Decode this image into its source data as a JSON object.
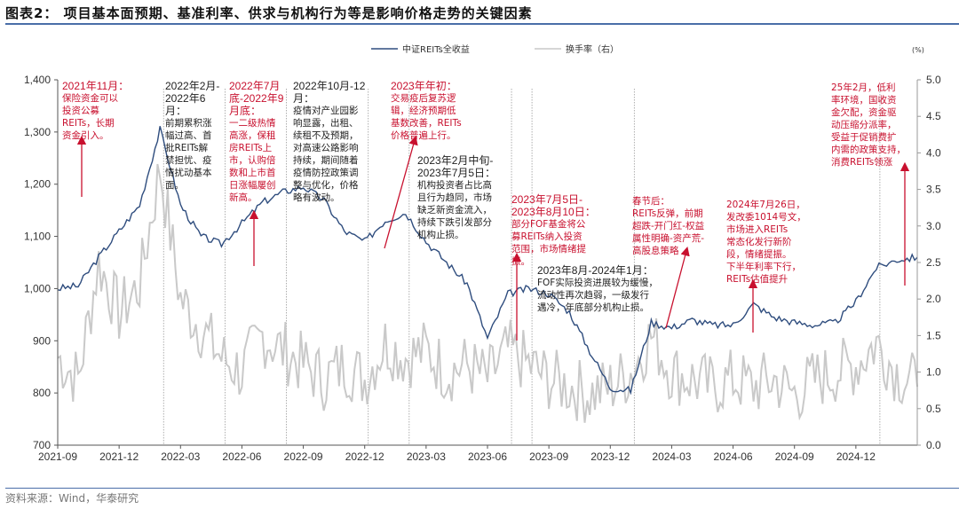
{
  "header": {
    "title": "图表2：  项目基本面预期、基准利率、供求与机构行为等是影响价格走势的关键因素"
  },
  "footer": {
    "source": "资料来源：Wind，华泰研究"
  },
  "colors": {
    "index_line": "#2f4d7e",
    "turnover_line": "#c9c9c9",
    "annotation_red": "#c8102e",
    "annotation_black": "#222222",
    "rule": "#4a6ea8"
  },
  "chart_data": {
    "type": "line",
    "title": "项目基本面预期、基准利率、供求与机构行为等是影响价格走势的关键因素",
    "xlabel": "",
    "ylabel_left": "",
    "ylabel_right": "(%)",
    "x_ticks": [
      "2021-09",
      "2021-12",
      "2022-03",
      "2022-06",
      "2022-09",
      "2022-12",
      "2023-03",
      "2023-06",
      "2023-09",
      "2023-12",
      "2024-03",
      "2024-06",
      "2024-09",
      "2024-12"
    ],
    "ylim_left": [
      700,
      1400
    ],
    "yticks_left": [
      "700",
      "800",
      "900",
      "1,000",
      "1,100",
      "1,200",
      "1,300",
      "1,400"
    ],
    "ylim_right": [
      0.0,
      5.0
    ],
    "yticks_right": [
      "0.0",
      "0.5",
      "1.0",
      "1.5",
      "2.0",
      "2.5",
      "3.0",
      "3.5",
      "4.0",
      "4.5",
      "5.0"
    ],
    "grid": false,
    "legend_position": "top",
    "legend": [
      "中证REITs全收益",
      "换手率（右）"
    ],
    "series": [
      {
        "name": "中证REITs全收益",
        "axis": "left",
        "x": [
          "2021-09",
          "2021-10",
          "2021-11",
          "2021-12",
          "2022-01",
          "2022-02",
          "2022-03",
          "2022-04",
          "2022-05",
          "2022-06",
          "2022-07",
          "2022-08",
          "2022-09",
          "2022-10",
          "2022-11",
          "2022-12",
          "2023-01",
          "2023-02",
          "2023-03",
          "2023-04",
          "2023-05",
          "2023-06",
          "2023-07",
          "2023-08",
          "2023-09",
          "2023-10",
          "2023-11",
          "2023-12",
          "2024-01",
          "2024-02",
          "2024-03",
          "2024-04",
          "2024-05",
          "2024-06",
          "2024-07",
          "2024-08",
          "2024-09",
          "2024-10",
          "2024-11",
          "2024-12",
          "2025-01",
          "2025-02",
          "2025-03"
        ],
        "values": [
          1000,
          1005,
          1060,
          1110,
          1160,
          1305,
          1160,
          1100,
          1085,
          1125,
          1165,
          1185,
          1195,
          1170,
          1110,
          1090,
          1130,
          1145,
          1090,
          1050,
          1010,
          905,
          990,
          1000,
          990,
          955,
          880,
          810,
          805,
          935,
          925,
          940,
          930,
          930,
          970,
          945,
          935,
          930,
          935,
          975,
          1040,
          1055,
          1060
        ]
      },
      {
        "name": "换手率（右）",
        "axis": "right",
        "x": [
          "2021-09",
          "2021-10",
          "2021-11",
          "2021-12",
          "2022-01",
          "2022-02",
          "2022-03",
          "2022-04",
          "2022-05",
          "2022-06",
          "2022-07",
          "2022-08",
          "2022-09",
          "2022-10",
          "2022-11",
          "2022-12",
          "2023-01",
          "2023-02",
          "2023-03",
          "2023-04",
          "2023-05",
          "2023-06",
          "2023-07",
          "2023-08",
          "2023-09",
          "2023-10",
          "2023-11",
          "2023-12",
          "2024-01",
          "2024-02",
          "2024-03",
          "2024-04",
          "2024-05",
          "2024-06",
          "2024-07",
          "2024-08",
          "2024-09",
          "2024-10",
          "2024-11",
          "2024-12",
          "2025-01",
          "2025-02",
          "2025-03"
        ],
        "values": [
          1.2,
          0.9,
          2.5,
          1.8,
          2.2,
          3.8,
          2.0,
          1.6,
          1.2,
          1.0,
          1.5,
          1.3,
          1.1,
          0.9,
          1.1,
          0.9,
          1.4,
          1.2,
          1.3,
          1.0,
          1.1,
          0.9,
          1.3,
          1.1,
          0.9,
          0.8,
          0.7,
          0.8,
          1.0,
          1.5,
          1.0,
          0.9,
          0.8,
          0.9,
          0.8,
          0.9,
          0.7,
          0.9,
          1.0,
          1.1,
          1.4,
          1.0,
          0.8
        ]
      }
    ],
    "event_markers_vertical_dotted": [
      "2022-02",
      "2022-05",
      "2022-08",
      "2022-12",
      "2023-02",
      "2023-07",
      "2023-08",
      "2024-01",
      "2025-01"
    ]
  },
  "annotations": [
    {
      "id": "a1",
      "color": "red",
      "head": "2021年11月：",
      "body": "保险资金可以\n投资公募\nREITs，长期\n资金引入。"
    },
    {
      "id": "a2",
      "color": "black",
      "head": "2022年2月-\n2022年6\n月：",
      "body": "前期累积涨\n幅过高、首\n批REITs解\n禁担忧、疫\n情扰动基本\n面。"
    },
    {
      "id": "a3",
      "color": "red",
      "head": "2022年7月\n底-2022年9\n月底：",
      "body": "一二级热情\n高涨，保租\n房REITs上\n市，认购倍\n数和上市首\n日涨幅屡创\n新高。"
    },
    {
      "id": "a4",
      "color": "black",
      "head": "2022年10月-12月：",
      "body": "疫情对产业园影\n响显露，出租、\n续租不及预期，\n对高速公路影响\n持续，期间随着\n疫情防控政策调\n整与优化，价格\n略有波动。"
    },
    {
      "id": "a5",
      "color": "red",
      "head": "2023年年初：",
      "body": "交易疫后复苏逻\n辑，经济预期低\n基数改善，REITs\n价格普遍上行。"
    },
    {
      "id": "a6",
      "color": "black",
      "head": "2023年2月中旬-\n2023年7月5日：",
      "body": "机构投资者占比高\n且行为趋同，市场\n缺乏新资金流入，\n持续下跌引发部分\n机构止损。"
    },
    {
      "id": "a7",
      "color": "red",
      "head": "2023年7月5日-\n2023年8月10日：",
      "body": "部分FOF基金将公\n募REITs纳入投资\n范围，市场情绪提\n振。"
    },
    {
      "id": "a8",
      "color": "black",
      "head": "2023年8月-2024年1月：",
      "body": "FOF实际投资进展较为缓慢，\n流动性再次趋弱，一级发行\n遇冷，年底部分机构止损。"
    },
    {
      "id": "a9",
      "color": "red",
      "head": "",
      "body": "春节后：\nREITs反弹，前期\n超跌-开门红-权益\n属性明确-资产荒-\n高股息策略"
    },
    {
      "id": "a10",
      "color": "red",
      "head": "",
      "body": "2024年7月26日，\n发改委1014号文，\n市场进入REITs\n常态化发行新阶\n段，情绪提振。\n下半年利率下行，\nREITs估值提升"
    },
    {
      "id": "a11",
      "color": "red",
      "head": "",
      "body": "25年2月，低利\n率环境，国收资\n金欠配，资金驱\n动压缩分派率，\n受益于促销费扩\n内需的政策支持，\n消费REITs领涨"
    }
  ]
}
